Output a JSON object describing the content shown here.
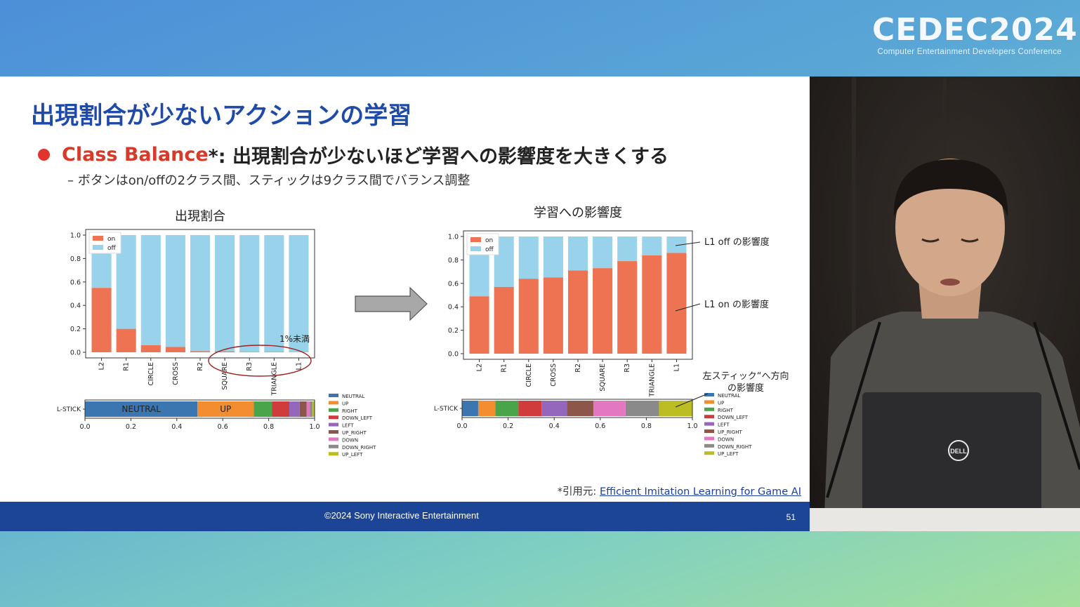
{
  "brand": {
    "logo_text": "CEDEC2024",
    "logo_subtitle": "Computer Entertainment Developers Conference"
  },
  "slide": {
    "title": "出現割合が少ないアクションの学習",
    "bullet_highlight": "Class Balance",
    "bullet_rest": "*: 出現割合が少ないほど学習への影響度を大きくする",
    "sub_bullet": "–  ボタンはon/offの2クラス間、スティックは9クラス間でバランス調整",
    "citation_prefix": "*引用元: ",
    "citation_link": "Efficient Imitation Learning for Game AI",
    "footer": "©2024 Sony Interactive Entertainment",
    "page_number": "51"
  },
  "annotations": {
    "under_1pct": "1%未満",
    "l1_off": "L1 off の影響度",
    "l1_on": "L1 on の影響度",
    "stick_line1": "左スティック“へ方向",
    "stick_line2": "の影響度"
  },
  "colors": {
    "on": "#ee7352",
    "off": "#98d3eb",
    "title_blue": "#1f4aa8",
    "bullet_red": "#d63a2a",
    "footer_blue": "#1d4597"
  },
  "chart_data": [
    {
      "type": "bar",
      "title": "出現割合",
      "stacked": true,
      "categories": [
        "L2",
        "R1",
        "CIRCLE",
        "CROSS",
        "R2",
        "SQUARE",
        "R3",
        "TRIANGLE",
        "L1"
      ],
      "series": [
        {
          "name": "on",
          "color": "#ee7352",
          "values": [
            0.55,
            0.2,
            0.06,
            0.045,
            0.01,
            0.008,
            0.004,
            0.003,
            0.002
          ]
        },
        {
          "name": "off",
          "color": "#98d3eb",
          "values": [
            0.45,
            0.8,
            0.94,
            0.955,
            0.99,
            0.992,
            0.996,
            0.997,
            0.998
          ]
        }
      ],
      "yticks": [
        "0.0",
        "0.2",
        "0.4",
        "0.6",
        "0.8",
        "1.0"
      ],
      "ylim": [
        0,
        1
      ],
      "legend": "top-left"
    },
    {
      "type": "bar",
      "title": "学習への影響度",
      "stacked": true,
      "categories": [
        "L2",
        "R1",
        "CIRCLE",
        "CROSS",
        "R2",
        "SQUARE",
        "R3",
        "TRIANGLE",
        "L1"
      ],
      "series": [
        {
          "name": "on",
          "color": "#ee7352",
          "values": [
            0.49,
            0.57,
            0.64,
            0.65,
            0.71,
            0.73,
            0.79,
            0.84,
            0.86
          ]
        },
        {
          "name": "off",
          "color": "#98d3eb",
          "values": [
            0.51,
            0.43,
            0.36,
            0.35,
            0.29,
            0.27,
            0.21,
            0.16,
            0.14
          ]
        }
      ],
      "yticks": [
        "0.0",
        "0.2",
        "0.4",
        "0.6",
        "0.8",
        "1.0"
      ],
      "ylim": [
        0,
        1
      ],
      "legend": "top-left"
    },
    {
      "type": "bar",
      "orientation": "horizontal",
      "stacked": true,
      "categories": [
        "L-STICK"
      ],
      "segments": [
        {
          "name": "NEUTRAL",
          "value": 0.49,
          "color": "#3b76b0",
          "label": "NEUTRAL"
        },
        {
          "name": "UP",
          "value": 0.245,
          "color": "#f28e2f",
          "label": "UP"
        },
        {
          "name": "RIGHT",
          "value": 0.08,
          "color": "#4aa54a",
          "label": ""
        },
        {
          "name": "DOWN_LEFT",
          "value": 0.075,
          "color": "#d03b3b",
          "label": ""
        },
        {
          "name": "LEFT",
          "value": 0.045,
          "color": "#9467bd",
          "label": ""
        },
        {
          "name": "UP_RIGHT",
          "value": 0.03,
          "color": "#8c564b",
          "label": ""
        },
        {
          "name": "DOWN",
          "value": 0.015,
          "color": "#e377c2",
          "label": ""
        },
        {
          "name": "DOWN_RIGHT",
          "value": 0.01,
          "color": "#8a8a8a",
          "label": ""
        },
        {
          "name": "UP_LEFT",
          "value": 0.01,
          "color": "#bcbd22",
          "label": ""
        }
      ],
      "xticks": [
        "0.0",
        "0.2",
        "0.4",
        "0.6",
        "0.8",
        "1.0"
      ],
      "xlim": [
        0,
        1
      ],
      "legend": "right"
    },
    {
      "type": "bar",
      "orientation": "horizontal",
      "stacked": true,
      "categories": [
        "L-STICK"
      ],
      "segments": [
        {
          "name": "NEUTRAL",
          "value": 0.07,
          "color": "#3b76b0"
        },
        {
          "name": "UP",
          "value": 0.075,
          "color": "#f28e2f"
        },
        {
          "name": "RIGHT",
          "value": 0.1,
          "color": "#4aa54a"
        },
        {
          "name": "DOWN_LEFT",
          "value": 0.1,
          "color": "#d03b3b"
        },
        {
          "name": "LEFT",
          "value": 0.11,
          "color": "#9467bd"
        },
        {
          "name": "UP_RIGHT",
          "value": 0.115,
          "color": "#8c564b"
        },
        {
          "name": "DOWN",
          "value": 0.14,
          "color": "#e377c2"
        },
        {
          "name": "DOWN_RIGHT",
          "value": 0.145,
          "color": "#8a8a8a"
        },
        {
          "name": "UP_LEFT",
          "value": 0.145,
          "color": "#bcbd22"
        }
      ],
      "xticks": [
        "0.0",
        "0.2",
        "0.4",
        "0.6",
        "0.8",
        "1.0"
      ],
      "xlim": [
        0,
        1
      ],
      "legend": "right"
    }
  ]
}
